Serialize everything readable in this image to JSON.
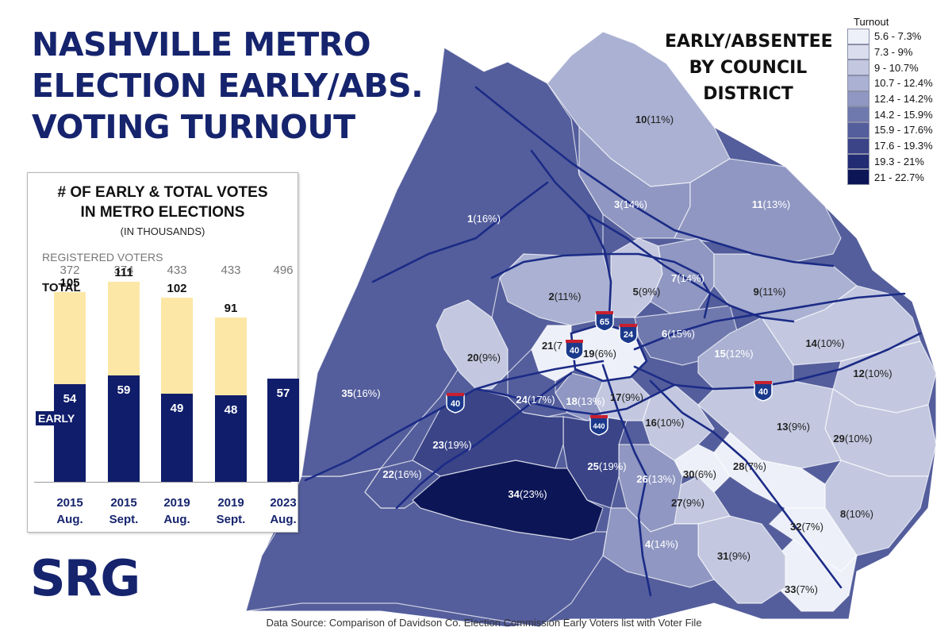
{
  "title_lines": [
    "NASHVILLE METRO",
    "ELECTION EARLY/ABS.",
    "VOTING TURNOUT"
  ],
  "map_title_lines": [
    "EARLY/ABSENTEE",
    "BY COUNCIL",
    "DISTRICT"
  ],
  "legend": {
    "title": "Turnout",
    "items": [
      {
        "label": "5.6 - 7.3%",
        "color": "#eef0f9"
      },
      {
        "label": "7.3 - 9%",
        "color": "#dadded"
      },
      {
        "label": "9 - 10.7%",
        "color": "#c3c8e0"
      },
      {
        "label": "10.7 - 12.4%",
        "color": "#aab1d2"
      },
      {
        "label": "12.4 - 14.2%",
        "color": "#8f97c2"
      },
      {
        "label": "14.2 - 15.9%",
        "color": "#7079ae"
      },
      {
        "label": "15.9 - 17.6%",
        "color": "#545e9c"
      },
      {
        "label": "17.6 - 19.3%",
        "color": "#3a4487"
      },
      {
        "label": "19.3 - 21%",
        "color": "#222c72"
      },
      {
        "label": "21 - 22.7%",
        "color": "#0c1657"
      }
    ]
  },
  "districts": [
    {
      "num": "1",
      "pct": "(16%)"
    },
    {
      "num": "2",
      "pct": "(11%)"
    },
    {
      "num": "3",
      "pct": "(14%)"
    },
    {
      "num": "4",
      "pct": "(14%)"
    },
    {
      "num": "5",
      "pct": "(9%)"
    },
    {
      "num": "6",
      "pct": "(15%)"
    },
    {
      "num": "7",
      "pct": "(14%)"
    },
    {
      "num": "8",
      "pct": "(10%)"
    },
    {
      "num": "9",
      "pct": "(11%)"
    },
    {
      "num": "10",
      "pct": "(11%)"
    },
    {
      "num": "11",
      "pct": "(13%)"
    },
    {
      "num": "12",
      "pct": "(10%)"
    },
    {
      "num": "13",
      "pct": "(9%)"
    },
    {
      "num": "14",
      "pct": "(10%)"
    },
    {
      "num": "15",
      "pct": "(12%)"
    },
    {
      "num": "16",
      "pct": "(10%)"
    },
    {
      "num": "17",
      "pct": "(9%)"
    },
    {
      "num": "18",
      "pct": "(13%)"
    },
    {
      "num": "19",
      "pct": "(6%)"
    },
    {
      "num": "20",
      "pct": "(9%)"
    },
    {
      "num": "21",
      "pct": "(7"
    },
    {
      "num": "22",
      "pct": "(16%)"
    },
    {
      "num": "23",
      "pct": "(19%)"
    },
    {
      "num": "24",
      "pct": "(17%)"
    },
    {
      "num": "25",
      "pct": "(19%)"
    },
    {
      "num": "26",
      "pct": "(13%)"
    },
    {
      "num": "27",
      "pct": "(9%)"
    },
    {
      "num": "28",
      "pct": "(7%)"
    },
    {
      "num": "29",
      "pct": "(10%)"
    },
    {
      "num": "30",
      "pct": "(6%)"
    },
    {
      "num": "31",
      "pct": "(9%)"
    },
    {
      "num": "32",
      "pct": "(7%)"
    },
    {
      "num": "33",
      "pct": "(7%)"
    },
    {
      "num": "34",
      "pct": "(23%)"
    },
    {
      "num": "35",
      "pct": "(16%)"
    }
  ],
  "highways": [
    "65",
    "24",
    "40",
    "40",
    "440",
    "40"
  ],
  "chart_data": {
    "type": "bar",
    "title": "# OF EARLY & TOTAL VOTES IN METRO ELECTIONS",
    "subtitle": "(IN THOUSANDS)",
    "categories": [
      "2015 Aug.",
      "2015 Sept.",
      "2019 Aug.",
      "2019 Sept.",
      "2023 Aug."
    ],
    "category_lines": [
      [
        "2015",
        "Aug."
      ],
      [
        "2015",
        "Sept."
      ],
      [
        "2019",
        "Aug."
      ],
      [
        "2019",
        "Sept."
      ],
      [
        "2023",
        "Aug."
      ]
    ],
    "registered_label": "REGISTERED VOTERS",
    "registered": [
      372,
      374,
      433,
      433,
      496
    ],
    "total_label": "TOTAL",
    "early_label": "EARLY",
    "series": [
      {
        "name": "TOTAL",
        "values": [
          105,
          111,
          102,
          91,
          null
        ],
        "color": "#fde7a6"
      },
      {
        "name": "EARLY",
        "values": [
          54,
          59,
          49,
          48,
          57
        ],
        "color": "#0f1d6a"
      }
    ],
    "ylim": [
      0,
      130
    ]
  },
  "logo_text": "SRG",
  "source": "Data Source: Comparison of Davidson Co. Election Commission Early Voters list with Voter File"
}
